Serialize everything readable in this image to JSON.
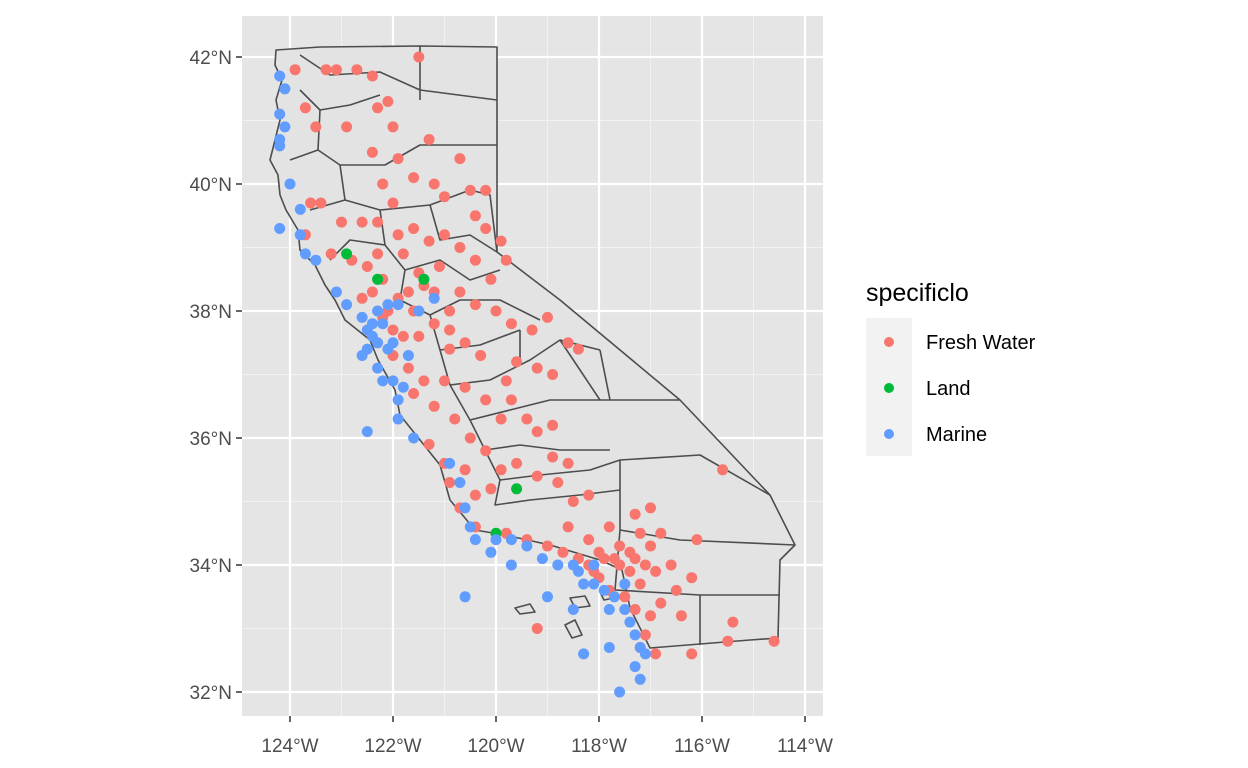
{
  "chart_data": {
    "type": "scatter",
    "subtype": "map",
    "title": "",
    "xlabel": "",
    "ylabel": "",
    "x_ticks": [
      "124°W",
      "122°W",
      "120°W",
      "118°W",
      "116°W",
      "114°W"
    ],
    "y_ticks": [
      "32°N",
      "34°N",
      "36°N",
      "38°N",
      "40°N",
      "42°N"
    ],
    "grid": true,
    "panel_background": "#e5e5e5",
    "basemap": "California county boundaries",
    "legend": {
      "title": "specificlo",
      "position": "right",
      "entries": [
        {
          "label": "Fresh Water",
          "color": "#f8766d"
        },
        {
          "label": "Land",
          "color": "#00ba38"
        },
        {
          "label": "Marine",
          "color": "#619cff"
        }
      ]
    },
    "series": [
      {
        "name": "Fresh Water",
        "color": "#f8766d",
        "points": [
          [
            -123.9,
            41.8
          ],
          [
            -123.3,
            41.8
          ],
          [
            -123.1,
            41.8
          ],
          [
            -122.7,
            41.8
          ],
          [
            -121.5,
            42.0
          ],
          [
            -122.4,
            41.7
          ],
          [
            -123.7,
            41.2
          ],
          [
            -123.5,
            40.9
          ],
          [
            -122.9,
            40.9
          ],
          [
            -122.1,
            41.3
          ],
          [
            -122.0,
            40.9
          ],
          [
            -121.3,
            40.7
          ],
          [
            -122.3,
            41.2
          ],
          [
            -122.4,
            40.5
          ],
          [
            -122.2,
            40.0
          ],
          [
            -121.9,
            40.4
          ],
          [
            -121.6,
            40.1
          ],
          [
            -120.7,
            40.4
          ],
          [
            -120.5,
            39.9
          ],
          [
            -120.2,
            39.9
          ],
          [
            -121.0,
            39.8
          ],
          [
            -121.2,
            40.0
          ],
          [
            -122.0,
            39.7
          ],
          [
            -122.3,
            39.4
          ],
          [
            -122.6,
            39.4
          ],
          [
            -123.0,
            39.4
          ],
          [
            -123.4,
            39.7
          ],
          [
            -123.6,
            39.7
          ],
          [
            -123.7,
            39.2
          ],
          [
            -123.2,
            38.9
          ],
          [
            -122.8,
            38.8
          ],
          [
            -122.5,
            38.7
          ],
          [
            -122.3,
            38.9
          ],
          [
            -121.9,
            39.2
          ],
          [
            -121.6,
            39.3
          ],
          [
            -121.3,
            39.1
          ],
          [
            -121.0,
            39.2
          ],
          [
            -120.7,
            39.0
          ],
          [
            -120.4,
            38.8
          ],
          [
            -120.1,
            38.5
          ],
          [
            -119.8,
            38.8
          ],
          [
            -119.9,
            39.1
          ],
          [
            -120.2,
            39.3
          ],
          [
            -120.4,
            39.5
          ],
          [
            -121.1,
            38.7
          ],
          [
            -121.5,
            38.6
          ],
          [
            -121.7,
            38.3
          ],
          [
            -121.9,
            38.2
          ],
          [
            -121.2,
            38.3
          ],
          [
            -120.9,
            38.0
          ],
          [
            -120.7,
            38.3
          ],
          [
            -120.4,
            38.1
          ],
          [
            -120.0,
            38.0
          ],
          [
            -119.7,
            37.8
          ],
          [
            -119.3,
            37.7
          ],
          [
            -119.0,
            37.9
          ],
          [
            -118.6,
            37.5
          ],
          [
            -118.4,
            37.4
          ],
          [
            -118.9,
            37.0
          ],
          [
            -119.2,
            37.1
          ],
          [
            -119.6,
            37.2
          ],
          [
            -119.8,
            36.9
          ],
          [
            -120.3,
            37.3
          ],
          [
            -120.6,
            37.5
          ],
          [
            -120.9,
            37.7
          ],
          [
            -121.2,
            37.8
          ],
          [
            -121.5,
            37.6
          ],
          [
            -121.8,
            37.6
          ],
          [
            -122.0,
            37.3
          ],
          [
            -121.7,
            37.1
          ],
          [
            -121.4,
            36.9
          ],
          [
            -121.6,
            36.7
          ],
          [
            -121.2,
            36.5
          ],
          [
            -120.8,
            36.3
          ],
          [
            -120.5,
            36.0
          ],
          [
            -120.2,
            35.8
          ],
          [
            -119.9,
            35.5
          ],
          [
            -119.6,
            35.6
          ],
          [
            -119.2,
            35.4
          ],
          [
            -118.8,
            35.3
          ],
          [
            -118.5,
            35.0
          ],
          [
            -118.2,
            35.1
          ],
          [
            -118.9,
            35.7
          ],
          [
            -119.4,
            36.3
          ],
          [
            -119.7,
            36.6
          ],
          [
            -118.9,
            36.2
          ],
          [
            -119.2,
            36.1
          ],
          [
            -118.6,
            35.6
          ],
          [
            -120.1,
            35.2
          ],
          [
            -120.4,
            35.1
          ],
          [
            -120.6,
            35.5
          ],
          [
            -120.9,
            35.3
          ],
          [
            -120.7,
            34.9
          ],
          [
            -120.4,
            34.6
          ],
          [
            -119.8,
            34.5
          ],
          [
            -119.4,
            34.4
          ],
          [
            -119.0,
            34.3
          ],
          [
            -118.7,
            34.2
          ],
          [
            -118.4,
            34.1
          ],
          [
            -118.2,
            34.0
          ],
          [
            -117.9,
            34.1
          ],
          [
            -117.6,
            34.0
          ],
          [
            -117.3,
            34.1
          ],
          [
            -117.1,
            34.0
          ],
          [
            -116.9,
            33.9
          ],
          [
            -117.2,
            33.7
          ],
          [
            -117.4,
            33.9
          ],
          [
            -117.0,
            34.3
          ],
          [
            -116.8,
            34.5
          ],
          [
            -117.2,
            34.5
          ],
          [
            -117.6,
            34.3
          ],
          [
            -117.8,
            34.6
          ],
          [
            -118.2,
            34.4
          ],
          [
            -118.6,
            34.6
          ],
          [
            -117.0,
            34.9
          ],
          [
            -117.3,
            34.8
          ],
          [
            -116.6,
            34.0
          ],
          [
            -116.2,
            33.8
          ],
          [
            -116.5,
            33.6
          ],
          [
            -116.8,
            33.4
          ],
          [
            -117.0,
            33.2
          ],
          [
            -117.1,
            32.9
          ],
          [
            -117.2,
            32.7
          ],
          [
            -116.9,
            32.6
          ],
          [
            -116.2,
            32.6
          ],
          [
            -115.5,
            32.8
          ],
          [
            -115.4,
            33.1
          ],
          [
            -114.6,
            32.8
          ],
          [
            -115.6,
            35.5
          ],
          [
            -121.8,
            38.9
          ],
          [
            -121.4,
            38.4
          ],
          [
            -120.9,
            37.4
          ],
          [
            -121.0,
            36.9
          ],
          [
            -122.2,
            38.5
          ],
          [
            -122.4,
            38.3
          ],
          [
            -122.6,
            38.2
          ],
          [
            -122.1,
            38.0
          ],
          [
            -122.0,
            37.7
          ],
          [
            -122.2,
            37.9
          ],
          [
            -121.6,
            38.0
          ],
          [
            -120.6,
            36.8
          ],
          [
            -120.2,
            36.6
          ],
          [
            -119.9,
            36.3
          ],
          [
            -121.3,
            35.9
          ],
          [
            -121.0,
            35.6
          ],
          [
            -118.1,
            33.9
          ],
          [
            -118.0,
            33.8
          ],
          [
            -117.8,
            33.6
          ],
          [
            -117.5,
            33.5
          ],
          [
            -117.3,
            33.3
          ],
          [
            -118.0,
            34.2
          ],
          [
            -117.7,
            34.1
          ],
          [
            -117.4,
            34.2
          ],
          [
            -119.2,
            33.0
          ],
          [
            -116.4,
            33.2
          ],
          [
            -116.1,
            34.4
          ]
        ]
      },
      {
        "name": "Land",
        "color": "#00ba38",
        "points": [
          [
            -122.9,
            38.9
          ],
          [
            -122.3,
            38.5
          ],
          [
            -121.4,
            38.5
          ],
          [
            -119.6,
            35.2
          ],
          [
            -120.0,
            34.5
          ]
        ]
      },
      {
        "name": "Marine",
        "color": "#619cff",
        "points": [
          [
            -124.2,
            41.7
          ],
          [
            -124.1,
            41.5
          ],
          [
            -124.2,
            41.1
          ],
          [
            -124.1,
            40.9
          ],
          [
            -124.2,
            40.7
          ],
          [
            -124.2,
            40.6
          ],
          [
            -124.0,
            40.0
          ],
          [
            -124.2,
            39.3
          ],
          [
            -123.8,
            39.6
          ],
          [
            -123.8,
            39.2
          ],
          [
            -123.7,
            38.9
          ],
          [
            -123.5,
            38.8
          ],
          [
            -123.1,
            38.3
          ],
          [
            -122.9,
            38.1
          ],
          [
            -122.6,
            37.9
          ],
          [
            -122.5,
            37.7
          ],
          [
            -122.4,
            37.6
          ],
          [
            -122.3,
            37.5
          ],
          [
            -122.1,
            37.4
          ],
          [
            -122.0,
            37.5
          ],
          [
            -122.2,
            37.8
          ],
          [
            -122.3,
            38.0
          ],
          [
            -122.1,
            38.1
          ],
          [
            -121.9,
            38.1
          ],
          [
            -122.4,
            37.8
          ],
          [
            -122.5,
            37.4
          ],
          [
            -122.3,
            37.1
          ],
          [
            -122.0,
            36.9
          ],
          [
            -121.9,
            36.6
          ],
          [
            -121.9,
            36.3
          ],
          [
            -122.5,
            36.1
          ],
          [
            -121.6,
            36.0
          ],
          [
            -120.9,
            35.6
          ],
          [
            -120.7,
            35.3
          ],
          [
            -120.6,
            34.9
          ],
          [
            -120.5,
            34.6
          ],
          [
            -120.4,
            34.4
          ],
          [
            -120.0,
            34.4
          ],
          [
            -119.7,
            34.4
          ],
          [
            -119.4,
            34.3
          ],
          [
            -119.1,
            34.1
          ],
          [
            -118.8,
            34.0
          ],
          [
            -118.5,
            34.0
          ],
          [
            -118.4,
            33.9
          ],
          [
            -118.3,
            33.7
          ],
          [
            -118.1,
            33.7
          ],
          [
            -117.9,
            33.6
          ],
          [
            -117.7,
            33.5
          ],
          [
            -117.5,
            33.3
          ],
          [
            -117.4,
            33.1
          ],
          [
            -117.3,
            32.9
          ],
          [
            -117.2,
            32.7
          ],
          [
            -117.1,
            32.6
          ],
          [
            -117.3,
            32.4
          ],
          [
            -117.2,
            32.2
          ],
          [
            -117.6,
            32.0
          ],
          [
            -118.3,
            32.6
          ],
          [
            -118.5,
            33.3
          ],
          [
            -119.0,
            33.5
          ],
          [
            -120.6,
            33.5
          ],
          [
            -119.7,
            34.0
          ],
          [
            -120.1,
            34.2
          ],
          [
            -121.7,
            37.3
          ],
          [
            -122.2,
            36.9
          ],
          [
            -122.6,
            37.3
          ],
          [
            -121.5,
            38.0
          ],
          [
            -121.2,
            38.2
          ],
          [
            -117.8,
            33.3
          ],
          [
            -118.1,
            34.0
          ],
          [
            -117.5,
            33.7
          ],
          [
            -117.8,
            32.7
          ],
          [
            -121.8,
            36.8
          ]
        ]
      }
    ]
  }
}
